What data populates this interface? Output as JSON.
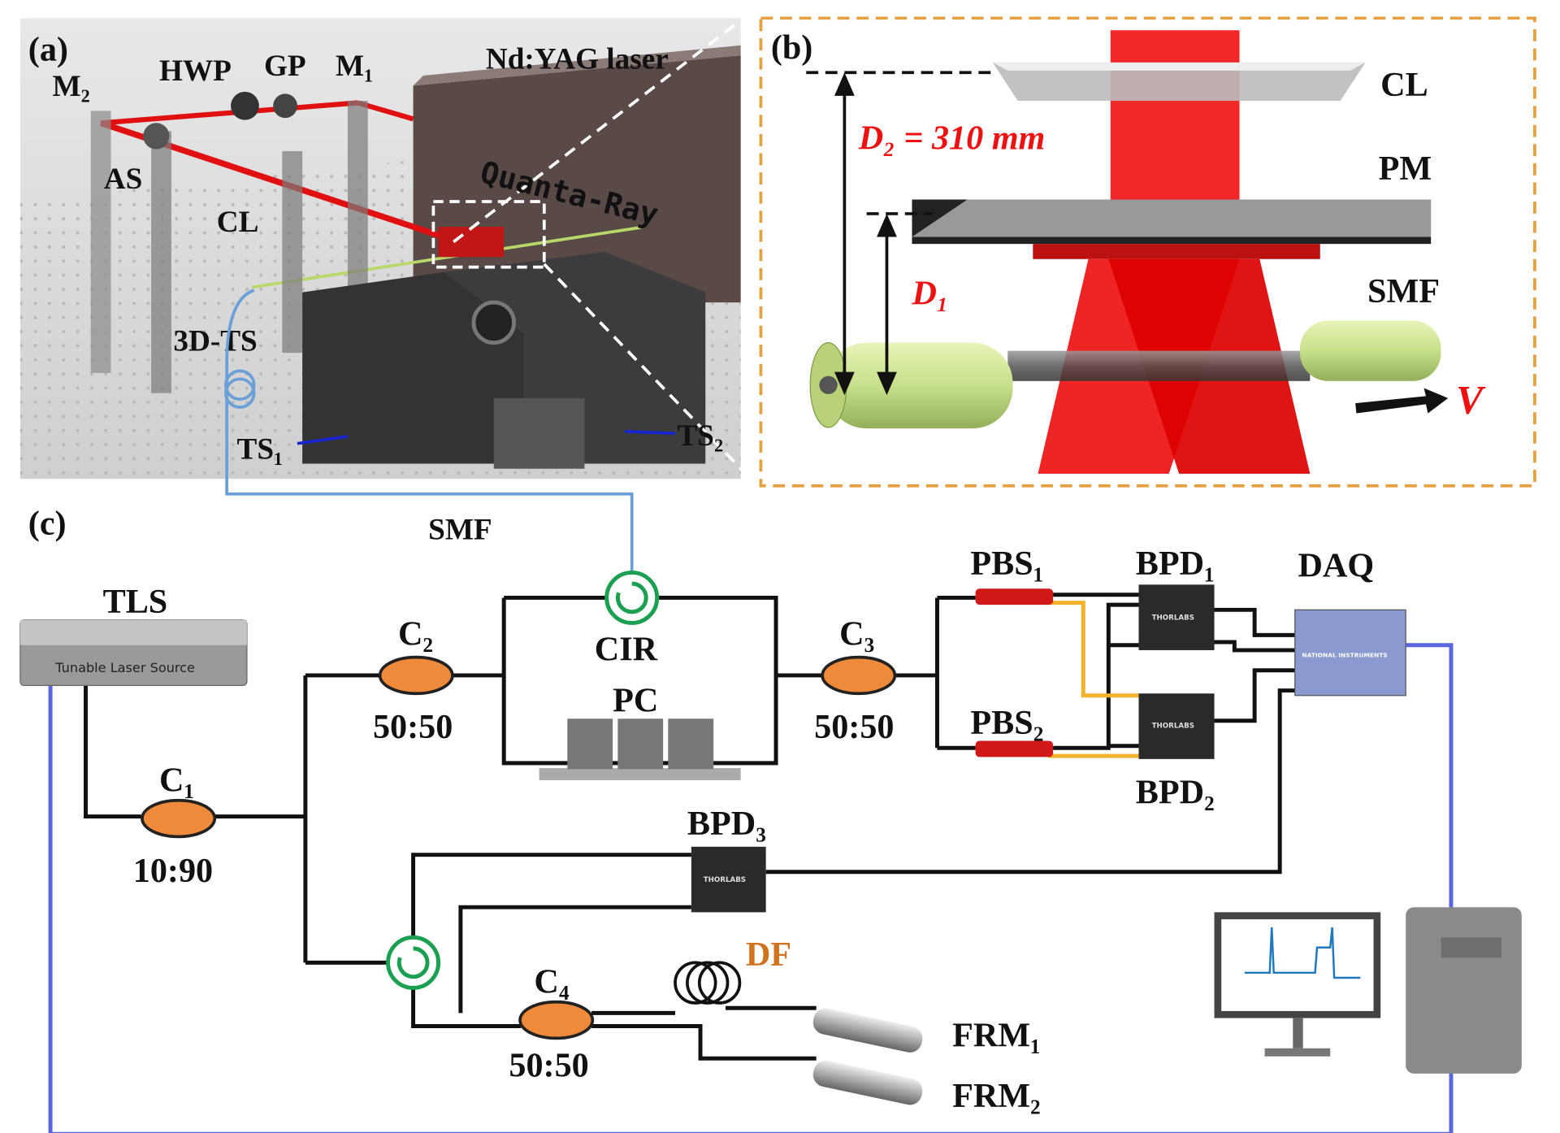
{
  "panel_a": {
    "tag": "(a)",
    "labels": {
      "m2": "M₂",
      "hwp": "HWP",
      "gp": "GP",
      "m1": "M₁",
      "laser": "Nd:YAG laser",
      "as": "AS",
      "cl": "CL",
      "brand": "Quanta-Ray",
      "ts3d": "3D-TS",
      "ts1": "TS₁",
      "ts2": "TS₂"
    }
  },
  "panel_b": {
    "tag": "(b)",
    "labels": {
      "cl": "CL",
      "d2": "D₂ = 310 mm",
      "pm": "PM",
      "d1": "D₁",
      "smf": "SMF",
      "v": "V"
    }
  },
  "panel_c": {
    "tag": "(c)",
    "labels": {
      "smf": "SMF",
      "tls": "TLS",
      "tls_name": "Tunable Laser Source",
      "c1": "C₁",
      "c1_ratio": "10:90",
      "c2": "C₂",
      "c2_ratio": "50:50",
      "cir": "CIR",
      "pc": "PC",
      "c3": "C₃",
      "c3_ratio": "50:50",
      "pbs1": "PBS₁",
      "pbs2": "PBS₂",
      "bpd1": "BPD₁",
      "bpd2": "BPD₂",
      "bpd3": "BPD₃",
      "daq": "DAQ",
      "df": "DF",
      "c4": "C₄",
      "c4_ratio": "50:50",
      "frm1": "FRM₁",
      "frm2": "FRM₂"
    },
    "device_labels": {
      "thorlabs": "THORLABS",
      "ni": "NATIONAL INSTRUMENTS"
    }
  }
}
